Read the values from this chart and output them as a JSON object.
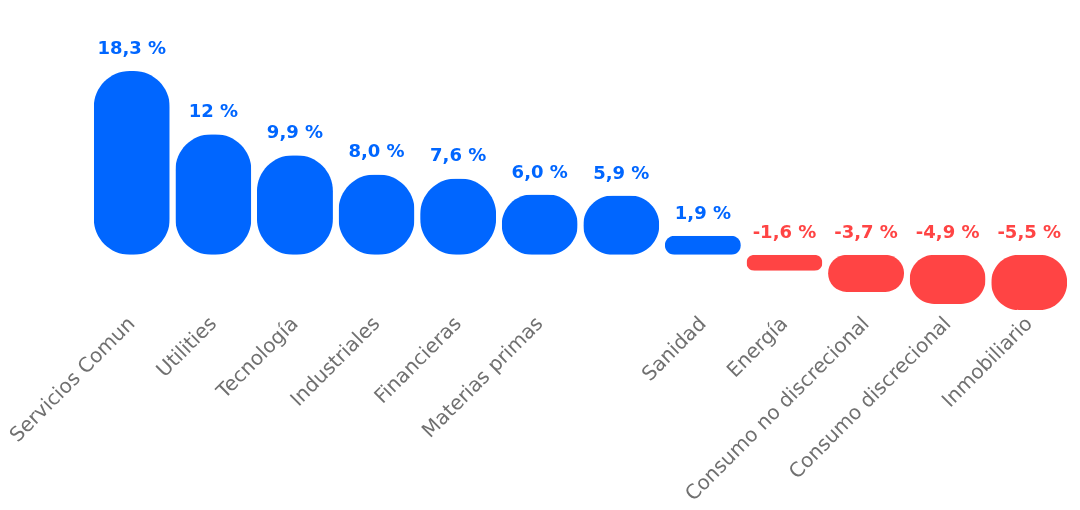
{
  "chart_data": {
    "type": "bar",
    "categories": [
      "Servicios Comun",
      "Utilities",
      "Tecnología",
      "Industriales",
      "Financieras",
      "Materias primas",
      null,
      "Sanidad",
      "Energía",
      "Consumo no discrecional",
      "Consumo discrecional",
      "Inmobiliario"
    ],
    "values": [
      18.3,
      12,
      9.9,
      8.0,
      7.6,
      6.0,
      5.9,
      1.9,
      -1.6,
      -3.7,
      -4.9,
      -5.5
    ],
    "value_labels": [
      "18,3 %",
      "12 %",
      "9,9 %",
      "8,0 %",
      "7,6 %",
      "6,0 %",
      "5,9 %",
      "1,9 %",
      "-1,6 %",
      "-3,7 %",
      "-4,9 %",
      "-5,5 %"
    ],
    "colors": [
      "#0066ff",
      "#0066ff",
      "#0066ff",
      "#0066ff",
      "#0066ff",
      "#0066ff",
      "#0066ff",
      "#0066ff",
      "#ff4444",
      "#ff4444",
      "#ff4444",
      "#ff4444"
    ],
    "grid": false
  }
}
